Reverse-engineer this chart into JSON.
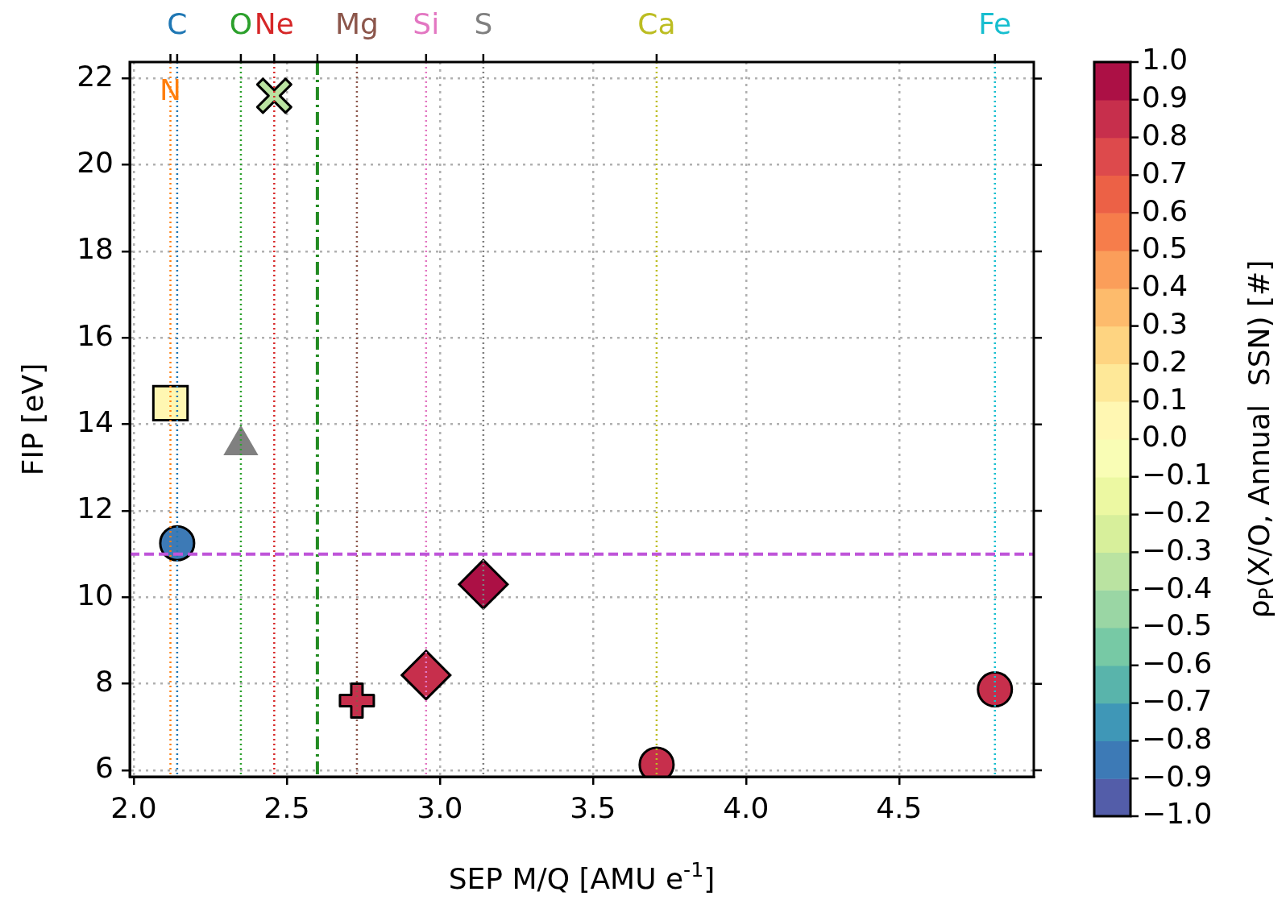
{
  "chart_data": {
    "type": "scatter",
    "xlabel": "SEP M/Q [AMU e$^{-1}$]",
    "ylabel": "FIP [eV]",
    "clabel": "ρ$_{P}$(X/O, Annual  SSN) [#]",
    "xlim": [
      1.987,
      4.94
    ],
    "ylim": [
      5.85,
      22.38
    ],
    "xticks": [
      {
        "value": 2.0,
        "label": "2.0"
      },
      {
        "value": 2.5,
        "label": "2.5"
      },
      {
        "value": 3.0,
        "label": "3.0"
      },
      {
        "value": 3.5,
        "label": "3.5"
      },
      {
        "value": 4.0,
        "label": "4.0"
      },
      {
        "value": 4.5,
        "label": "4.5"
      }
    ],
    "yticks": [
      6,
      8,
      10,
      12,
      14,
      16,
      18,
      20,
      22
    ],
    "clim": [
      -1,
      1
    ],
    "cticks": [
      {
        "value": -1.0,
        "label": "−1.0"
      },
      {
        "value": -0.9,
        "label": "−0.9"
      },
      {
        "value": -0.8,
        "label": "−0.8"
      },
      {
        "value": -0.7,
        "label": "−0.7"
      },
      {
        "value": -0.6,
        "label": "−0.6"
      },
      {
        "value": -0.5,
        "label": "−0.5"
      },
      {
        "value": -0.4,
        "label": "−0.4"
      },
      {
        "value": -0.3,
        "label": "−0.3"
      },
      {
        "value": -0.2,
        "label": "−0.2"
      },
      {
        "value": -0.1,
        "label": "−0.1"
      },
      {
        "value": 0.0,
        "label": "0.0"
      },
      {
        "value": 0.1,
        "label": "0.1"
      },
      {
        "value": 0.2,
        "label": "0.2"
      },
      {
        "value": 0.3,
        "label": "0.3"
      },
      {
        "value": 0.4,
        "label": "0.4"
      },
      {
        "value": 0.5,
        "label": "0.5"
      },
      {
        "value": 0.6,
        "label": "0.6"
      },
      {
        "value": 0.7,
        "label": "0.7"
      },
      {
        "value": 0.8,
        "label": "0.8"
      },
      {
        "value": 0.9,
        "label": "0.9"
      },
      {
        "value": 1.0,
        "label": "1.0"
      }
    ],
    "grid": true,
    "legend": false,
    "series": [
      {
        "x": [
          2.142
        ],
        "values": [
          11.25
        ],
        "cvalues": [
          -0.85
        ],
        "marker": "circle"
      },
      {
        "x": [
          2.12
        ],
        "values": [
          14.49
        ],
        "cvalues": [
          0.05
        ],
        "marker": "square"
      },
      {
        "x": [
          2.35
        ],
        "values": [
          13.52
        ],
        "cvalues": [
          null
        ],
        "color": "#808080",
        "marker": "triangle"
      },
      {
        "x": [
          2.459
        ],
        "values": [
          21.6
        ],
        "cvalues": [
          -0.35
        ],
        "marker": "x"
      },
      {
        "x": [
          2.729
        ],
        "values": [
          7.61
        ],
        "cvalues": [
          0.85
        ],
        "marker": "plus"
      },
      {
        "x": [
          2.955
        ],
        "values": [
          8.2
        ],
        "cvalues": [
          0.85
        ],
        "marker": "diamond"
      },
      {
        "x": [
          3.142
        ],
        "values": [
          10.3
        ],
        "cvalues": [
          0.95
        ],
        "marker": "diamond"
      },
      {
        "x": [
          3.708
        ],
        "values": [
          6.13
        ],
        "cvalues": [
          0.85
        ]
      },
      {
        "x": [
          4.813
        ],
        "values": [
          7.87
        ],
        "cvalues": [
          0.85
        ]
      }
    ],
    "ref_lines": [
      {
        "axis": "x",
        "value": 2.142,
        "label": "C",
        "color": "#1f77b4",
        "line_style": "dotted"
      },
      {
        "axis": "x",
        "value": 2.12,
        "label": "N",
        "color": "#ff7f0e",
        "line_style": "dotted"
      },
      {
        "axis": "x",
        "value": 2.35,
        "label": "O",
        "color": "#2ca02c",
        "line_style": "dotted"
      },
      {
        "axis": "x",
        "value": 2.459,
        "label": "Ne",
        "color": "#d62728",
        "line_style": "dotted"
      },
      {
        "axis": "x",
        "value": 2.729,
        "label": "Mg",
        "color": "#8c564b",
        "line_style": "dotted"
      },
      {
        "axis": "x",
        "value": 2.955,
        "label": "Si",
        "color": "#e377c2",
        "line_style": "dotted"
      },
      {
        "axis": "x",
        "value": 3.142,
        "label": "S",
        "color": "#7f7f7f",
        "line_style": "dotted"
      },
      {
        "axis": "x",
        "value": 3.708,
        "label": "Ca",
        "color": "#bcbd22",
        "line_style": "dotted"
      },
      {
        "axis": "x",
        "value": 4.813,
        "label": "Fe",
        "color": "#17becf",
        "line_style": "dotted"
      },
      {
        "axis": "x",
        "value": 2.6,
        "color": "#228b22",
        "line_style": "dashdot"
      },
      {
        "axis": "y",
        "value": 11.0,
        "color": "#bf55d9",
        "line_style": "dashed"
      }
    ]
  }
}
